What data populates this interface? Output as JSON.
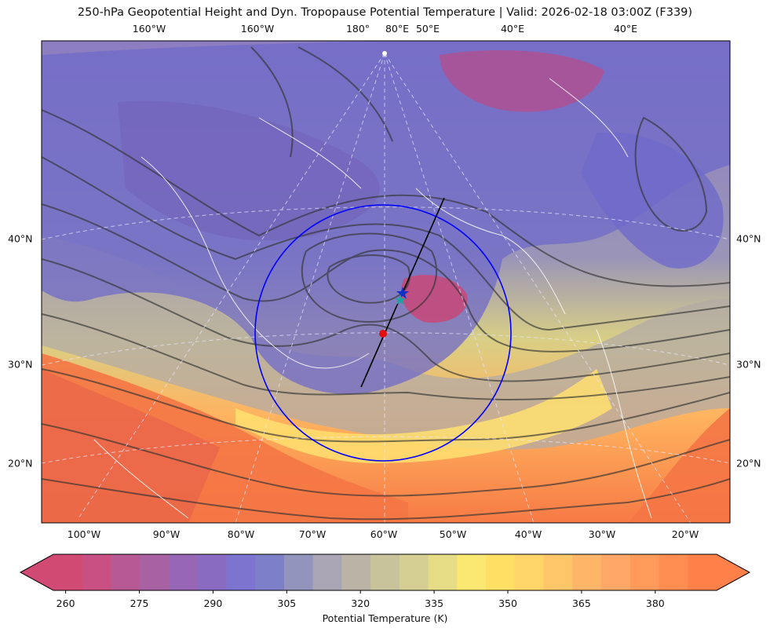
{
  "title": "250-hPa Geopotential Height and Dyn. Tropopause Potential Temperature   |  Valid: 2026-02-18 03:00Z (F339)",
  "map": {
    "top_ticks": [
      "160°W",
      "160°W",
      "180°",
      "80°E",
      "50°E",
      "40°E",
      "40°E"
    ],
    "bottom_ticks": [
      "100°W",
      "90°W",
      "80°W",
      "70°W",
      "60°W",
      "50°W",
      "40°W",
      "30°W",
      "20°W"
    ],
    "left_ticks": [
      "40°N",
      "30°N",
      "20°N"
    ],
    "right_ticks": [
      "40°N",
      "30°N",
      "20°N"
    ],
    "overlays": {
      "circle_color": "#0000ff",
      "cross_section_color": "#000000",
      "star_marker": "blue-star",
      "secondary_marker": "teal-star",
      "point_marker": "red-dot"
    }
  },
  "colorbar": {
    "label": "Potential Temperature (K)",
    "ticks": [
      "260",
      "275",
      "290",
      "305",
      "320",
      "335",
      "350",
      "365",
      "380"
    ],
    "colors": [
      "#d14a74",
      "#c95082",
      "#b75a94",
      "#a862a3",
      "#9767b5",
      "#8a6bc2",
      "#7c74cf",
      "#7d80c8",
      "#9394be",
      "#a9a5b5",
      "#bbb3a5",
      "#c9c39b",
      "#d6cf93",
      "#e6dc85",
      "#fae873",
      "#ffdf64",
      "#ffd468",
      "#ffc669",
      "#ffb568",
      "#ffa766",
      "#ff9a5a",
      "#ff8d52",
      "#ff8049"
    ]
  }
}
